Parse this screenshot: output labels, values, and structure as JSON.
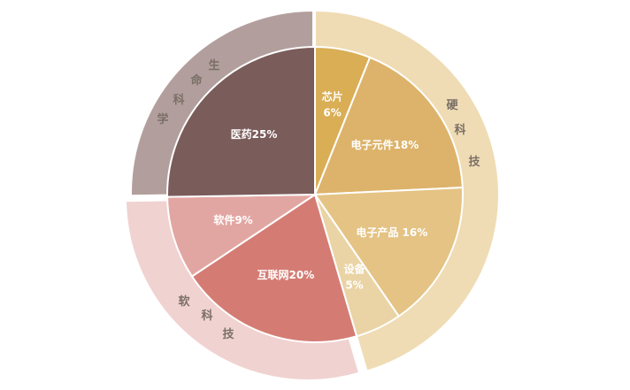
{
  "chart_data": {
    "type": "pie",
    "title": "",
    "slices": [
      {
        "label": "芯片",
        "value": 6,
        "value_label": "6%",
        "color": "#d9ae55"
      },
      {
        "label": "电子元件",
        "value": 18,
        "value_label": "18%",
        "color": "#ddb36b"
      },
      {
        "label": "电子产品",
        "value": 16,
        "value_label": "16%",
        "color": "#e4c384"
      },
      {
        "label": "设备",
        "value": 5,
        "value_label": "5%",
        "color": "#ead4a6"
      },
      {
        "label": "互联网",
        "value": 20,
        "value_label": "20%",
        "color": "#d47c74"
      },
      {
        "label": "软件",
        "value": 9,
        "value_label": "9%",
        "color": "#e2a6a2"
      },
      {
        "label": "医药",
        "value": 25,
        "value_label": "25%",
        "color": "#7a5c5a"
      }
    ],
    "groups": [
      {
        "label": "硬科技",
        "chars": [
          "硬",
          "科",
          "技"
        ],
        "value": 45,
        "color": "#efdcb4"
      },
      {
        "label": "软科技",
        "chars": [
          "软",
          "科",
          "技"
        ],
        "value": 29,
        "color": "#f0d2d0"
      },
      {
        "label": "生命科学",
        "chars": [
          "生",
          "命",
          "科",
          "学"
        ],
        "value": 25,
        "color": "#b29f9d"
      }
    ]
  }
}
